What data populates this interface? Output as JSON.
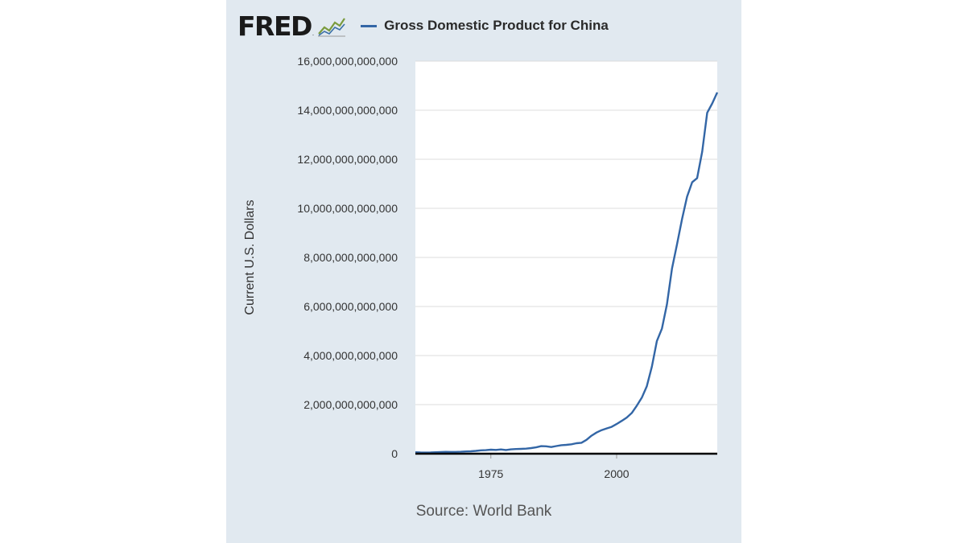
{
  "brand": {
    "logo_text": "FRED",
    "logo_mark": "."
  },
  "legend": {
    "label": "Gross Domestic Product for China",
    "color": "#3366a6"
  },
  "source": "Source: World Bank",
  "chart_data": {
    "type": "line",
    "title": "Gross Domestic Product for China",
    "xlabel": "",
    "ylabel": "Current U.S. Dollars",
    "xlim": [
      1960,
      2020
    ],
    "ylim": [
      0,
      16000000000000
    ],
    "x_ticks": [
      1975,
      2000
    ],
    "y_ticks": [
      0,
      2000000000000,
      4000000000000,
      6000000000000,
      8000000000000,
      10000000000000,
      12000000000000,
      14000000000000,
      16000000000000
    ],
    "y_tick_labels": [
      "0",
      "2,000,000,000,000",
      "4,000,000,000,000",
      "6,000,000,000,000",
      "8,000,000,000,000",
      "10,000,000,000,000",
      "12,000,000,000,000",
      "14,000,000,000,000",
      "16,000,000,000,000"
    ],
    "x_tick_labels": [
      "1975",
      "2000"
    ],
    "grid": true,
    "series": [
      {
        "name": "Gross Domestic Product for China",
        "color": "#3366a6",
        "x": [
          1960,
          1961,
          1962,
          1963,
          1964,
          1965,
          1966,
          1967,
          1968,
          1969,
          1970,
          1971,
          1972,
          1973,
          1974,
          1975,
          1976,
          1977,
          1978,
          1979,
          1980,
          1981,
          1982,
          1983,
          1984,
          1985,
          1986,
          1987,
          1988,
          1989,
          1990,
          1991,
          1992,
          1993,
          1994,
          1995,
          1996,
          1997,
          1998,
          1999,
          2000,
          2001,
          2002,
          2003,
          2004,
          2005,
          2006,
          2007,
          2008,
          2009,
          2010,
          2011,
          2012,
          2013,
          2014,
          2015,
          2016,
          2017,
          2018,
          2019,
          2020
        ],
        "values": [
          59700000000,
          50100000000,
          47200000000,
          50700000000,
          59700000000,
          70400000000,
          76700000000,
          72900000000,
          70800000000,
          79700000000,
          92600000000,
          99800000000,
          113700000000,
          138500000000,
          144200000000,
          163400000000,
          153900000000,
          174900000000,
          149500000000,
          178300000000,
          191100000000,
          195900000000,
          205100000000,
          230700000000,
          259900000000,
          309500000000,
          300800000000,
          272900000000,
          312400000000,
          347800000000,
          360900000000,
          383400000000,
          426900000000,
          444700000000,
          564300000000,
          734500000000,
          863700000000,
          961600000000,
          1029000000000,
          1094000000000,
          1211000000000,
          1339000000000,
          1471000000000,
          1660000000000,
          1955000000000,
          2286000000000,
          2752000000000,
          3550000000000,
          4594000000000,
          5102000000000,
          6087000000000,
          7552000000000,
          8532000000000,
          9570000000000,
          10476000000000,
          11062000000000,
          11233000000000,
          12310000000000,
          13895000000000,
          14280000000000,
          14723000000000
        ]
      }
    ]
  }
}
